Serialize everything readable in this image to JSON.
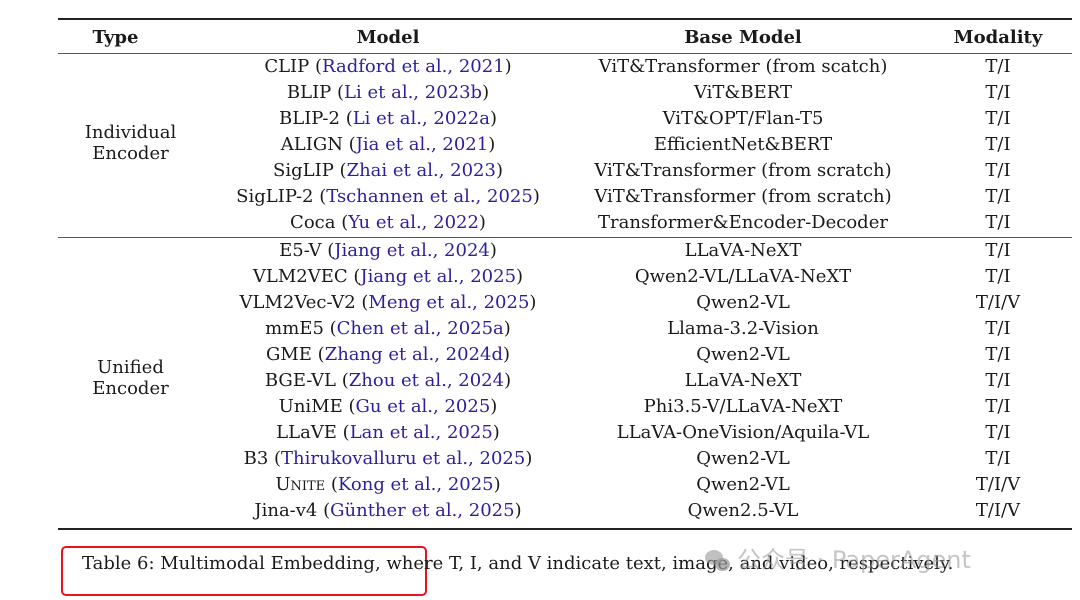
{
  "table": {
    "headers": {
      "type": "Type",
      "model": "Model",
      "base_model": "Base Model",
      "modality": "Modality"
    },
    "groups": [
      {
        "label_line1": "Individual",
        "label_line2": "Encoder",
        "rows": [
          {
            "model": "CLIP",
            "cite": "Radford et al., 2021",
            "base": "ViT&Transformer (from scatch)",
            "modality": "T/I"
          },
          {
            "model": "BLIP",
            "cite": "Li et al., 2023b",
            "base": "ViT&BERT",
            "modality": "T/I"
          },
          {
            "model": "BLIP-2",
            "cite": "Li et al., 2022a",
            "base": "ViT&OPT/Flan-T5",
            "modality": "T/I"
          },
          {
            "model": "ALIGN",
            "cite": "Jia et al., 2021",
            "base": "EfficientNet&BERT",
            "modality": "T/I"
          },
          {
            "model": "SigLIP",
            "cite": "Zhai et al., 2023",
            "base": "ViT&Transformer (from scratch)",
            "modality": "T/I"
          },
          {
            "model": "SigLIP-2",
            "cite": "Tschannen et al., 2025",
            "base": "ViT&Transformer (from scratch)",
            "modality": "T/I"
          },
          {
            "model": "Coca",
            "cite": "Yu et al., 2022",
            "base": "Transformer&Encoder-Decoder",
            "modality": "T/I"
          }
        ]
      },
      {
        "label_line1": "Unified",
        "label_line2": "Encoder",
        "rows": [
          {
            "model": "E5-V",
            "cite": "Jiang et al., 2024",
            "base": "LLaVA-NeXT",
            "modality": "T/I"
          },
          {
            "model": "VLM2VEC",
            "cite": "Jiang et al., 2025",
            "base": "Qwen2-VL/LLaVA-NeXT",
            "modality": "T/I"
          },
          {
            "model": "VLM2Vec-V2",
            "cite": "Meng et al., 2025",
            "base": "Qwen2-VL",
            "modality": "T/I/V"
          },
          {
            "model": "mmE5",
            "cite": "Chen et al., 2025a",
            "base": "Llama-3.2-Vision",
            "modality": "T/I"
          },
          {
            "model": "GME",
            "cite": "Zhang et al., 2024d",
            "base": "Qwen2-VL",
            "modality": "T/I"
          },
          {
            "model": "BGE-VL",
            "cite": "Zhou et al., 2024",
            "base": "LLaVA-NeXT",
            "modality": "T/I"
          },
          {
            "model": "UniME",
            "cite": "Gu et al., 2025",
            "base": "Phi3.5-V/LLaVA-NeXT",
            "modality": "T/I"
          },
          {
            "model": "LLaVE",
            "cite": "Lan et al., 2025",
            "base": "LLaVA-OneVision/Aquila-VL",
            "modality": "T/I"
          },
          {
            "model": "B3",
            "cite": "Thirukovalluru et al., 2025",
            "base": "Qwen2-VL",
            "modality": "T/I"
          },
          {
            "model": "Unite",
            "cite": "Kong et al., 2025",
            "base": "Qwen2-VL",
            "modality": "T/I/V"
          },
          {
            "model": "Jina-v4",
            "cite": "Günther et al., 2025",
            "base": "Qwen2.5-VL",
            "modality": "T/I/V"
          }
        ]
      }
    ]
  },
  "caption": "Table 6: Multimodal Embedding, where T, I, and V indicate text, image, and video, respectively.",
  "watermark": "公众号 · PaperAgent",
  "colors": {
    "citation": "#2b1f9c",
    "highlight_box": "#e8131b",
    "rule": "#222222"
  },
  "punct": {
    "open": " (",
    "close": ")"
  }
}
